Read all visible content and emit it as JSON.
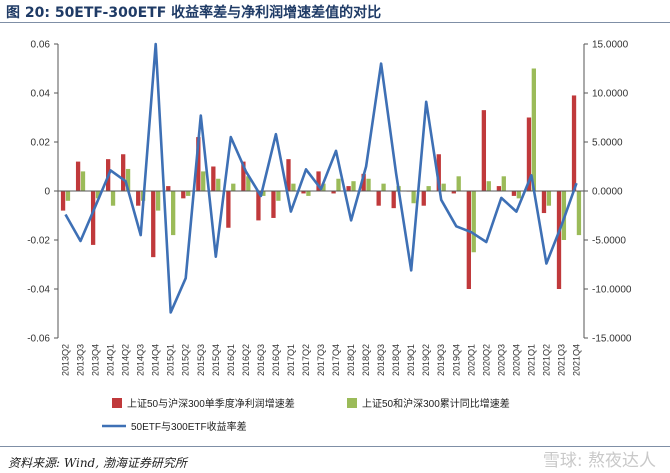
{
  "figure": {
    "title": "图 20:  50ETF-300ETF 收益率差与净利润增速差值的对比",
    "source": "资料来源: Wind, 渤海证券研究所",
    "watermark": "雪球: 熬夜达人"
  },
  "chart_data": {
    "type": "bar",
    "categories": [
      "2013Q2",
      "2013Q3",
      "2013Q4",
      "2014Q1",
      "2014Q2",
      "2014Q3",
      "2014Q4",
      "2015Q1",
      "2015Q2",
      "2015Q3",
      "2015Q4",
      "2016Q1",
      "2016Q2",
      "2016Q3",
      "2016Q4",
      "2017Q1",
      "2017Q2",
      "2017Q3",
      "2017Q4",
      "2018Q1",
      "2018Q2",
      "2018Q3",
      "2018Q4",
      "2019Q1",
      "2019Q2",
      "2019Q3",
      "2019Q4",
      "2020Q1",
      "2020Q2",
      "2020Q3",
      "2020Q4",
      "2021Q1",
      "2021Q2",
      "2021Q3",
      "2021Q4"
    ],
    "y_left": {
      "range": [
        -0.06,
        0.06
      ],
      "step": 0.02,
      "ticks": [
        "0.06",
        "0.04",
        "0.02",
        "0",
        "-0.02",
        "-0.04",
        "-0.06"
      ]
    },
    "y_right": {
      "range": [
        -15,
        15
      ],
      "step": 5,
      "ticks": [
        "15.0000",
        "10.0000",
        "5.0000",
        "0.0000",
        "-5.0000",
        "-10.0000",
        "-15.0000"
      ]
    },
    "series": [
      {
        "name": "上证50与沪深300单季度净利润增速差",
        "kind": "bar",
        "axis": "left",
        "color": "#c0393b",
        "values": [
          -0.008,
          0.012,
          -0.022,
          0.013,
          0.015,
          -0.006,
          -0.027,
          0.002,
          -0.003,
          0.022,
          0.01,
          -0.015,
          0.012,
          -0.012,
          -0.011,
          0.013,
          -0.001,
          0.008,
          -0.001,
          0.002,
          0.007,
          -0.006,
          -0.007,
          0.0,
          -0.006,
          0.015,
          -0.001,
          -0.04,
          0.033,
          0.002,
          -0.002,
          0.03,
          -0.009,
          -0.04,
          0.039
        ]
      },
      {
        "name": "上证50和沪深300累计同比增速差",
        "kind": "bar",
        "axis": "left",
        "color": "#9bbb59",
        "values": [
          -0.004,
          0.008,
          -0.003,
          -0.006,
          0.009,
          -0.004,
          -0.008,
          -0.018,
          -0.002,
          0.008,
          0.005,
          0.003,
          0.006,
          -0.002,
          -0.004,
          0.003,
          -0.002,
          0.003,
          0.005,
          0.004,
          0.005,
          0.003,
          0.002,
          -0.005,
          0.002,
          0.003,
          0.006,
          -0.025,
          0.004,
          0.006,
          -0.003,
          0.05,
          -0.006,
          -0.02,
          -0.018
        ]
      },
      {
        "name": "50ETF与300ETF收益率差",
        "kind": "line",
        "axis": "right",
        "color": "#3e70b5",
        "values": [
          -2.4,
          -5.1,
          -1.5,
          2.1,
          1.0,
          -4.5,
          15.0,
          -12.4,
          -8.9,
          7.7,
          -6.7,
          5.5,
          2.0,
          -0.5,
          5.8,
          -2.1,
          2.2,
          0.2,
          4.1,
          -3.0,
          2.5,
          13.0,
          1.8,
          -8.1,
          9.1,
          -0.9,
          -3.6,
          -4.2,
          -5.2,
          -0.7,
          -2.1,
          1.6,
          -7.4,
          -3.5,
          0.8
        ]
      }
    ],
    "legend": "bottom"
  }
}
